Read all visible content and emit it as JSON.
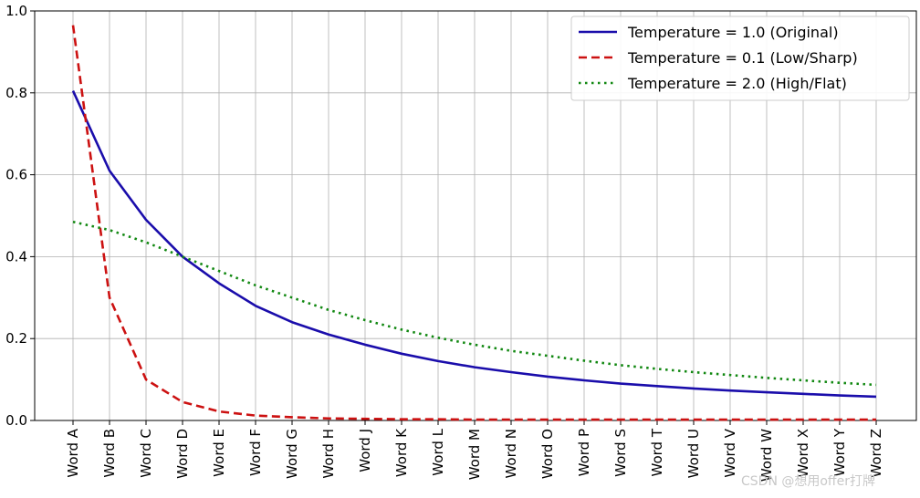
{
  "chart_data": {
    "type": "line",
    "title": "",
    "xlabel": "",
    "ylabel": "",
    "ylim": [
      0.0,
      1.0
    ],
    "yticks": [
      "0.0",
      "0.2",
      "0.4",
      "0.6",
      "0.8",
      "1.0"
    ],
    "grid": true,
    "legend_position": "top-right",
    "categories": [
      "Word A",
      "Word B",
      "Word C",
      "Word D",
      "Word E",
      "Word F",
      "Word G",
      "Word H",
      "Word J",
      "Word K",
      "Word L",
      "Word M",
      "Word N",
      "Word O",
      "Word P",
      "Word S",
      "Word T",
      "Word U",
      "Word V",
      "Word W",
      "Word X",
      "Word Y",
      "Word Z"
    ],
    "series": [
      {
        "name": "Temperature = 1.0 (Original)",
        "color": "#1a0dab",
        "style": "solid",
        "values": [
          0.805,
          0.61,
          0.49,
          0.4,
          0.335,
          0.28,
          0.24,
          0.21,
          0.185,
          0.163,
          0.145,
          0.13,
          0.118,
          0.107,
          0.098,
          0.09,
          0.084,
          0.078,
          0.073,
          0.069,
          0.065,
          0.061,
          0.058
        ]
      },
      {
        "name": "Temperature = 0.1 (Low/Sharp)",
        "color": "#cc1111",
        "style": "dashed",
        "values": [
          0.965,
          0.3,
          0.1,
          0.045,
          0.022,
          0.012,
          0.008,
          0.005,
          0.004,
          0.003,
          0.003,
          0.002,
          0.002,
          0.002,
          0.002,
          0.002,
          0.002,
          0.002,
          0.002,
          0.002,
          0.002,
          0.002,
          0.002
        ]
      },
      {
        "name": "Temperature = 2.0 (High/Flat)",
        "color": "#118811",
        "style": "dotted",
        "values": [
          0.485,
          0.465,
          0.435,
          0.4,
          0.365,
          0.33,
          0.3,
          0.27,
          0.245,
          0.222,
          0.202,
          0.185,
          0.17,
          0.158,
          0.146,
          0.135,
          0.126,
          0.118,
          0.111,
          0.104,
          0.098,
          0.092,
          0.087
        ]
      }
    ]
  },
  "watermark": "CSDN @想用offer打牌"
}
